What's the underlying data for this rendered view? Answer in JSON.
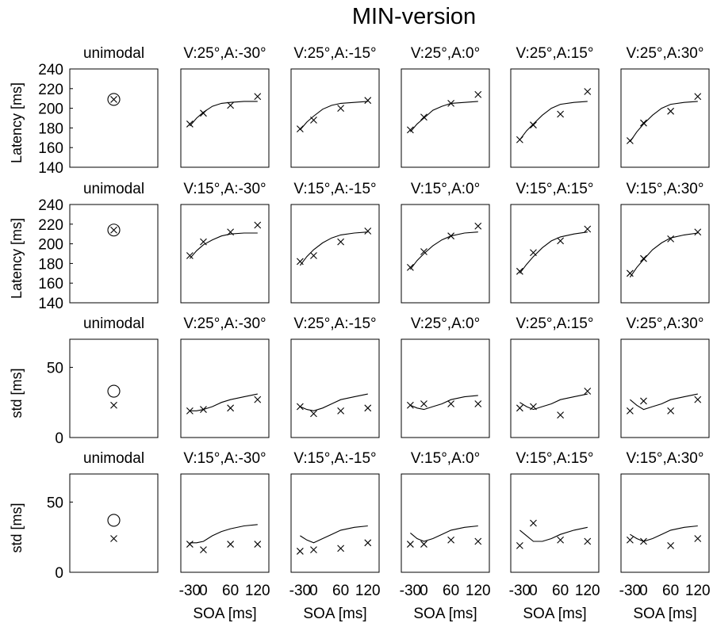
{
  "title": "MIN-version",
  "x_label": "SOA [ms]",
  "x_ticks": [
    -30,
    0,
    60,
    120
  ],
  "rows": [
    {
      "ylabel": "Latency [ms]",
      "ylim": [
        140,
        240
      ],
      "yticks": [
        140,
        160,
        180,
        200,
        220,
        240
      ],
      "panel_titles": [
        "unimodal",
        "V:25°,A:-30°",
        "V:25°,A:-15°",
        "V:25°,A:0°",
        "V:25°,A:15°",
        "V:25°,A:30°"
      ]
    },
    {
      "ylabel": "Latency [ms]",
      "ylim": [
        140,
        240
      ],
      "yticks": [
        140,
        160,
        180,
        200,
        220,
        240
      ],
      "panel_titles": [
        "unimodal",
        "V:15°,A:-30°",
        "V:15°,A:-15°",
        "V:15°,A:0°",
        "V:15°,A:15°",
        "V:15°,A:30°"
      ]
    },
    {
      "ylabel": "std [ms]",
      "ylim": [
        0,
        70
      ],
      "yticks": [
        0,
        50
      ],
      "panel_titles": [
        "unimodal",
        "V:25°,A:-30°",
        "V:25°,A:-15°",
        "V:25°,A:0°",
        "V:25°,A:15°",
        "V:25°,A:30°"
      ]
    },
    {
      "ylabel": "std [ms]",
      "ylim": [
        0,
        70
      ],
      "yticks": [
        0,
        50
      ],
      "panel_titles": [
        "unimodal",
        "V:15°,A:-30°",
        "V:15°,A:-15°",
        "V:15°,A:0°",
        "V:15°,A:15°",
        "V:15°,A:30°"
      ]
    }
  ],
  "chart_data": {
    "type": "scatter",
    "title": "MIN-version",
    "xlabel": "SOA [ms]",
    "xlim": [
      -50,
      145
    ],
    "soa": [
      -30,
      0,
      60,
      120
    ],
    "grid": false,
    "panels": [
      {
        "row": 0,
        "col": 0,
        "title": "unimodal",
        "circle": [
          0,
          209
        ],
        "cross": [
          0,
          209
        ]
      },
      {
        "row": 0,
        "col": 1,
        "title": "V:25°,A:-30°",
        "observed": [
          184,
          195,
          203,
          212
        ],
        "fit": [
          [
            -30,
            182
          ],
          [
            -15,
            190
          ],
          [
            0,
            196
          ],
          [
            20,
            202
          ],
          [
            40,
            205
          ],
          [
            60,
            206
          ],
          [
            90,
            207
          ],
          [
            120,
            207
          ]
        ]
      },
      {
        "row": 0,
        "col": 2,
        "title": "V:25°,A:-15°",
        "observed": [
          179,
          188,
          200,
          208
        ],
        "fit": [
          [
            -30,
            178
          ],
          [
            -15,
            186
          ],
          [
            0,
            192
          ],
          [
            20,
            199
          ],
          [
            40,
            203
          ],
          [
            60,
            205
          ],
          [
            90,
            206
          ],
          [
            120,
            207
          ]
        ]
      },
      {
        "row": 0,
        "col": 3,
        "title": "V:25°,A:0°",
        "observed": [
          178,
          191,
          205,
          214
        ],
        "fit": [
          [
            -30,
            176
          ],
          [
            -15,
            184
          ],
          [
            0,
            190
          ],
          [
            20,
            198
          ],
          [
            40,
            202
          ],
          [
            60,
            205
          ],
          [
            90,
            206
          ],
          [
            120,
            207
          ]
        ]
      },
      {
        "row": 0,
        "col": 4,
        "title": "V:25°,A:15°",
        "observed": [
          168,
          183,
          194,
          217
        ],
        "fit": [
          [
            -30,
            168
          ],
          [
            -15,
            177
          ],
          [
            0,
            184
          ],
          [
            20,
            193
          ],
          [
            40,
            200
          ],
          [
            60,
            204
          ],
          [
            90,
            206
          ],
          [
            120,
            207
          ]
        ]
      },
      {
        "row": 0,
        "col": 5,
        "title": "V:25°,A:30°",
        "observed": [
          167,
          185,
          197,
          212
        ],
        "fit": [
          [
            -30,
            166
          ],
          [
            -15,
            176
          ],
          [
            0,
            184
          ],
          [
            20,
            193
          ],
          [
            40,
            200
          ],
          [
            60,
            204
          ],
          [
            90,
            206
          ],
          [
            120,
            207
          ]
        ]
      },
      {
        "row": 1,
        "col": 0,
        "title": "unimodal",
        "circle": [
          0,
          214
        ],
        "cross": [
          0,
          214
        ]
      },
      {
        "row": 1,
        "col": 1,
        "title": "V:15°,A:-30°",
        "observed": [
          188,
          202,
          212,
          219
        ],
        "fit": [
          [
            -30,
            185
          ],
          [
            -15,
            193
          ],
          [
            0,
            199
          ],
          [
            20,
            204
          ],
          [
            40,
            208
          ],
          [
            60,
            210
          ],
          [
            90,
            211
          ],
          [
            120,
            211
          ]
        ]
      },
      {
        "row": 1,
        "col": 2,
        "title": "V:15°,A:-15°",
        "observed": [
          182,
          188,
          202,
          213
        ],
        "fit": [
          [
            -30,
            178
          ],
          [
            -15,
            187
          ],
          [
            0,
            194
          ],
          [
            20,
            201
          ],
          [
            40,
            206
          ],
          [
            60,
            209
          ],
          [
            90,
            211
          ],
          [
            120,
            212
          ]
        ]
      },
      {
        "row": 1,
        "col": 3,
        "title": "V:15°,A:0°",
        "observed": [
          176,
          192,
          208,
          218
        ],
        "fit": [
          [
            -30,
            174
          ],
          [
            -15,
            183
          ],
          [
            0,
            190
          ],
          [
            20,
            198
          ],
          [
            40,
            204
          ],
          [
            60,
            208
          ],
          [
            90,
            211
          ],
          [
            120,
            212
          ]
        ]
      },
      {
        "row": 1,
        "col": 4,
        "title": "V:15°,A:15°",
        "observed": [
          172,
          191,
          203,
          215
        ],
        "fit": [
          [
            -30,
            170
          ],
          [
            -15,
            179
          ],
          [
            0,
            187
          ],
          [
            20,
            196
          ],
          [
            40,
            203
          ],
          [
            60,
            207
          ],
          [
            90,
            210
          ],
          [
            120,
            212
          ]
        ]
      },
      {
        "row": 1,
        "col": 5,
        "title": "V:15°,A:30°",
        "observed": [
          170,
          185,
          205,
          212
        ],
        "fit": [
          [
            -30,
            166
          ],
          [
            -15,
            176
          ],
          [
            0,
            184
          ],
          [
            20,
            194
          ],
          [
            40,
            201
          ],
          [
            60,
            206
          ],
          [
            90,
            209
          ],
          [
            120,
            211
          ]
        ]
      },
      {
        "row": 2,
        "col": 0,
        "title": "unimodal",
        "circle": [
          0,
          33
        ],
        "cross": [
          0,
          23
        ]
      },
      {
        "row": 2,
        "col": 1,
        "title": "V:25°,A:-30°",
        "observed": [
          19,
          20,
          21,
          27
        ],
        "fit": [
          [
            -30,
            19
          ],
          [
            -15,
            19
          ],
          [
            0,
            20
          ],
          [
            20,
            22
          ],
          [
            40,
            25
          ],
          [
            60,
            27
          ],
          [
            90,
            29
          ],
          [
            120,
            31
          ]
        ]
      },
      {
        "row": 2,
        "col": 2,
        "title": "V:25°,A:-15°",
        "observed": [
          22,
          17,
          19,
          21
        ],
        "fit": [
          [
            -30,
            22
          ],
          [
            -15,
            20
          ],
          [
            0,
            19
          ],
          [
            20,
            21
          ],
          [
            40,
            24
          ],
          [
            60,
            27
          ],
          [
            90,
            29
          ],
          [
            120,
            31
          ]
        ]
      },
      {
        "row": 2,
        "col": 3,
        "title": "V:25°,A:0°",
        "observed": [
          23,
          24,
          24,
          24
        ],
        "fit": [
          [
            -30,
            23
          ],
          [
            -15,
            21
          ],
          [
            0,
            20
          ],
          [
            20,
            22
          ],
          [
            40,
            24
          ],
          [
            60,
            27
          ],
          [
            90,
            29
          ],
          [
            120,
            30
          ]
        ]
      },
      {
        "row": 2,
        "col": 4,
        "title": "V:25°,A:15°",
        "observed": [
          21,
          22,
          16,
          33
        ],
        "fit": [
          [
            -30,
            25
          ],
          [
            -15,
            22
          ],
          [
            0,
            20
          ],
          [
            20,
            22
          ],
          [
            40,
            24
          ],
          [
            60,
            27
          ],
          [
            90,
            29
          ],
          [
            120,
            31
          ]
        ]
      },
      {
        "row": 2,
        "col": 5,
        "title": "V:25°,A:30°",
        "observed": [
          19,
          26,
          19,
          27
        ],
        "fit": [
          [
            -30,
            27
          ],
          [
            -15,
            23
          ],
          [
            0,
            20
          ],
          [
            20,
            22
          ],
          [
            40,
            24
          ],
          [
            60,
            27
          ],
          [
            90,
            29
          ],
          [
            120,
            31
          ]
        ]
      },
      {
        "row": 3,
        "col": 0,
        "title": "unimodal",
        "circle": [
          0,
          37
        ],
        "cross": [
          0,
          24
        ]
      },
      {
        "row": 3,
        "col": 1,
        "title": "V:15°,A:-30°",
        "observed": [
          20,
          16,
          20,
          20
        ],
        "fit": [
          [
            -30,
            21
          ],
          [
            -15,
            21
          ],
          [
            0,
            22
          ],
          [
            20,
            26
          ],
          [
            40,
            29
          ],
          [
            60,
            31
          ],
          [
            90,
            33
          ],
          [
            120,
            34
          ]
        ]
      },
      {
        "row": 3,
        "col": 2,
        "title": "V:15°,A:-15°",
        "observed": [
          15,
          16,
          17,
          21
        ],
        "fit": [
          [
            -30,
            26
          ],
          [
            -15,
            23
          ],
          [
            0,
            21
          ],
          [
            20,
            24
          ],
          [
            40,
            27
          ],
          [
            60,
            30
          ],
          [
            90,
            32
          ],
          [
            120,
            33
          ]
        ]
      },
      {
        "row": 3,
        "col": 3,
        "title": "V:15°,A:0°",
        "observed": [
          20,
          20,
          23,
          22
        ],
        "fit": [
          [
            -30,
            28
          ],
          [
            -15,
            24
          ],
          [
            0,
            22
          ],
          [
            20,
            24
          ],
          [
            40,
            27
          ],
          [
            60,
            30
          ],
          [
            90,
            32
          ],
          [
            120,
            33
          ]
        ]
      },
      {
        "row": 3,
        "col": 4,
        "title": "V:15°,A:15°",
        "observed": [
          19,
          35,
          23,
          22
        ],
        "fit": [
          [
            -30,
            30
          ],
          [
            -15,
            26
          ],
          [
            0,
            22
          ],
          [
            20,
            22
          ],
          [
            40,
            24
          ],
          [
            60,
            27
          ],
          [
            90,
            30
          ],
          [
            120,
            32
          ]
        ]
      },
      {
        "row": 3,
        "col": 5,
        "title": "V:15°,A:30°",
        "observed": [
          23,
          22,
          19,
          24
        ],
        "fit": [
          [
            -30,
            27
          ],
          [
            -15,
            24
          ],
          [
            0,
            22
          ],
          [
            20,
            24
          ],
          [
            40,
            27
          ],
          [
            60,
            30
          ],
          [
            90,
            32
          ],
          [
            120,
            33
          ]
        ]
      }
    ]
  }
}
